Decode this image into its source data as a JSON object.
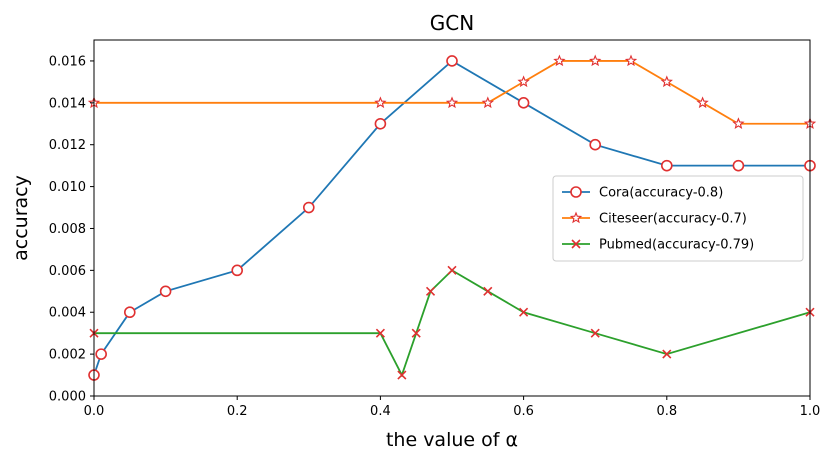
{
  "chart_data": {
    "type": "line",
    "title": "GCN",
    "xlabel": "the value of α",
    "ylabel": "accuracy",
    "xlim": [
      0.0,
      1.0
    ],
    "ylim": [
      0.0,
      0.017
    ],
    "x_ticks": [
      0.0,
      0.2,
      0.4,
      0.6,
      0.8,
      1.0
    ],
    "x_tick_labels": [
      "0.0",
      "0.2",
      "0.4",
      "0.6",
      "0.8",
      "1.0"
    ],
    "y_ticks": [
      0.0,
      0.002,
      0.004,
      0.006,
      0.008,
      0.01,
      0.012,
      0.014,
      0.016
    ],
    "y_tick_labels": [
      "0.000",
      "0.002",
      "0.004",
      "0.006",
      "0.008",
      "0.010",
      "0.012",
      "0.014",
      "0.016"
    ],
    "grid": false,
    "legend_position": "center-right",
    "series": [
      {
        "name": "Cora(accuracy-0.8)",
        "color": "#1f77b4",
        "marker": "circle",
        "marker_color": "#e03030",
        "x": [
          0.0,
          0.01,
          0.05,
          0.1,
          0.2,
          0.3,
          0.4,
          0.5,
          0.6,
          0.7,
          0.8,
          0.9,
          1.0
        ],
        "y": [
          0.001,
          0.002,
          0.004,
          0.005,
          0.006,
          0.009,
          0.013,
          0.016,
          0.014,
          0.012,
          0.011,
          0.011,
          0.011
        ]
      },
      {
        "name": "Citeseer(accuracy-0.7)",
        "color": "#ff7f0e",
        "marker": "star",
        "marker_color": "#e03030",
        "x": [
          0.0,
          0.4,
          0.5,
          0.55,
          0.6,
          0.65,
          0.7,
          0.75,
          0.8,
          0.85,
          0.9,
          1.0
        ],
        "y": [
          0.014,
          0.014,
          0.014,
          0.014,
          0.015,
          0.016,
          0.016,
          0.016,
          0.015,
          0.014,
          0.013,
          0.013
        ]
      },
      {
        "name": "Pubmed(accuracy-0.79)",
        "color": "#2ca02c",
        "marker": "x",
        "marker_color": "#e03030",
        "x": [
          0.0,
          0.4,
          0.43,
          0.45,
          0.47,
          0.5,
          0.55,
          0.6,
          0.7,
          0.8,
          1.0
        ],
        "y": [
          0.003,
          0.003,
          0.001,
          0.003,
          0.005,
          0.006,
          0.005,
          0.004,
          0.003,
          0.002,
          0.004
        ]
      }
    ]
  }
}
